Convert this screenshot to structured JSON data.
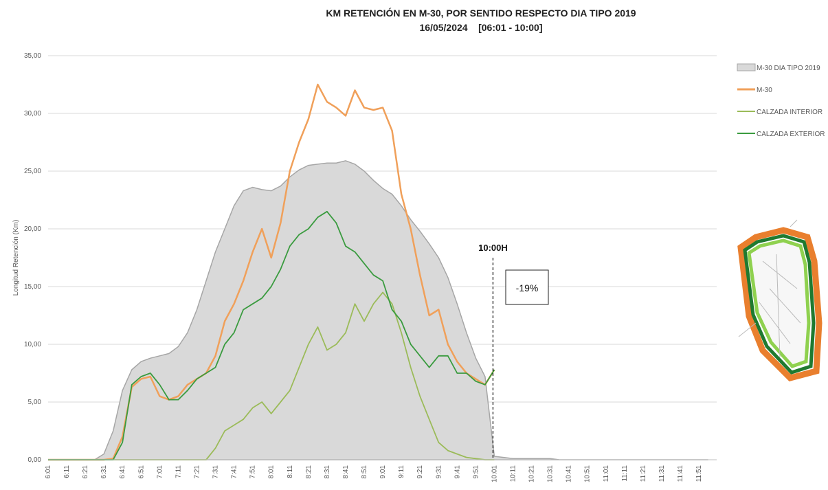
{
  "chart_data": {
    "type": "line",
    "title": "KM RETENCIÓN EN M-30, POR SENTIDO RESPECTO DIA TIPO 2019",
    "subtitle": "16/05/2024    [06:01 - 10:00]",
    "y_label": "Longitud Retención (Km)",
    "annotations": [
      "10:00H",
      "-19%"
    ],
    "categories": [
      "6:01",
      null,
      "6:11",
      null,
      "6:21",
      null,
      "6:31",
      null,
      "6:41",
      null,
      "6:51",
      null,
      "7:01",
      null,
      "7:11",
      null,
      "7:21",
      null,
      "7:31",
      null,
      "7:41",
      null,
      "7:51",
      null,
      "8:01",
      null,
      "8:11",
      null,
      "8:21",
      null,
      "8:31",
      null,
      "8:41",
      null,
      "8:51",
      null,
      "9:01",
      null,
      "9:11",
      null,
      "9:21",
      null,
      "9:31",
      null,
      "9:41",
      null,
      "9:51",
      null,
      "10:01",
      null,
      "10:11",
      null,
      "10:21",
      null,
      "10:31",
      null,
      "10:41",
      null,
      "10:51",
      null,
      "11:01",
      null,
      "11:11",
      null,
      "11:21",
      null,
      "11:31",
      null,
      "11:41",
      null,
      "11:51",
      null
    ],
    "ylim": [
      0,
      35
    ],
    "yticks": [
      {
        "value": 0,
        "label": "0,00"
      },
      {
        "value": 5,
        "label": "5,00"
      },
      {
        "value": 10,
        "label": "10,00"
      },
      {
        "value": 15,
        "label": "15,00"
      },
      {
        "value": 20,
        "label": "20,00"
      },
      {
        "value": 25,
        "label": "25,00"
      },
      {
        "value": 30,
        "label": "30,00"
      },
      {
        "value": 35,
        "label": "35,00"
      }
    ],
    "grid": true,
    "legend": "right",
    "series": [
      {
        "name": "M-30 DIA TIPO 2019",
        "color": "#d9d9d9",
        "style": "area",
        "values": [
          0,
          0,
          0,
          0,
          0,
          0,
          0.5,
          2.5,
          6,
          7.8,
          8.5,
          8.8,
          9,
          9.2,
          9.8,
          11,
          13,
          15.5,
          18,
          20,
          22,
          23.3,
          23.6,
          23.4,
          23.3,
          23.7,
          24.5,
          25.1,
          25.5,
          25.6,
          25.7,
          25.7,
          25.9,
          25.6,
          25,
          24.2,
          23.5,
          23,
          22,
          20.8,
          19.8,
          18.7,
          17.5,
          15.8,
          13.5,
          11,
          8.8,
          7.2,
          0.3,
          0.2,
          0.1,
          0.1,
          0.1,
          0.1,
          0.1,
          0,
          0,
          0,
          0,
          0,
          0,
          0,
          0,
          0,
          0,
          0,
          0,
          0,
          0,
          0,
          0,
          0
        ]
      },
      {
        "name": "M-30",
        "color": "#f0a05a",
        "style": "line",
        "values": [
          0,
          0,
          0,
          0,
          0,
          0,
          0,
          0.1,
          2,
          6.3,
          7,
          7.2,
          5.5,
          5.2,
          5.5,
          6.5,
          7,
          7.5,
          9,
          12,
          13.5,
          15.5,
          18,
          20,
          17.5,
          20.5,
          25,
          27.5,
          29.5,
          32.5,
          31,
          30.5,
          29.8,
          32,
          30.5,
          30.3,
          30.5,
          28.5,
          23,
          20,
          16,
          12.5,
          13,
          10,
          8.5,
          7.5,
          7,
          6.5,
          7.8,
          null,
          null,
          null,
          null,
          null,
          null,
          null,
          null,
          null,
          null,
          null,
          null,
          null,
          null,
          null,
          null,
          null,
          null,
          null,
          null,
          null,
          null,
          null
        ]
      },
      {
        "name": "CALZADA INTERIOR",
        "color": "#9bbb59",
        "style": "line",
        "values": [
          0,
          0,
          0,
          0,
          0,
          0,
          0,
          0,
          0,
          0,
          0,
          0,
          0,
          0,
          0,
          0,
          0,
          0,
          1,
          2.5,
          3,
          3.5,
          4.5,
          5,
          4,
          5,
          6,
          8,
          10,
          11.5,
          9.5,
          10,
          11,
          13.5,
          12,
          13.5,
          14.5,
          13.5,
          11,
          8,
          5.5,
          3.5,
          1.5,
          0.8,
          0.5,
          0.2,
          0.1,
          0,
          0,
          null,
          null,
          null,
          null,
          null,
          null,
          null,
          null,
          null,
          null,
          null,
          null,
          null,
          null,
          null,
          null,
          null,
          null,
          null,
          null,
          null,
          null,
          null
        ]
      },
      {
        "name": "CALZADA EXTERIOR",
        "color": "#3a9b3f",
        "style": "line",
        "values": [
          0,
          0,
          0,
          0,
          0,
          0,
          0,
          0,
          1.5,
          6.5,
          7.2,
          7.5,
          6.5,
          5.2,
          5.2,
          6,
          7,
          7.5,
          8,
          10,
          11,
          13,
          13.5,
          14,
          15,
          16.5,
          18.5,
          19.5,
          20,
          21,
          21.5,
          20.5,
          18.5,
          18,
          17,
          16,
          15.5,
          13,
          12,
          10,
          9,
          8,
          9,
          9,
          7.5,
          7.5,
          6.8,
          6.5,
          7.8,
          null,
          null,
          null,
          null,
          null,
          null,
          null,
          null,
          null,
          null,
          null,
          null,
          null,
          null,
          null,
          null,
          null,
          null,
          null,
          null,
          null,
          null,
          null
        ]
      }
    ]
  }
}
